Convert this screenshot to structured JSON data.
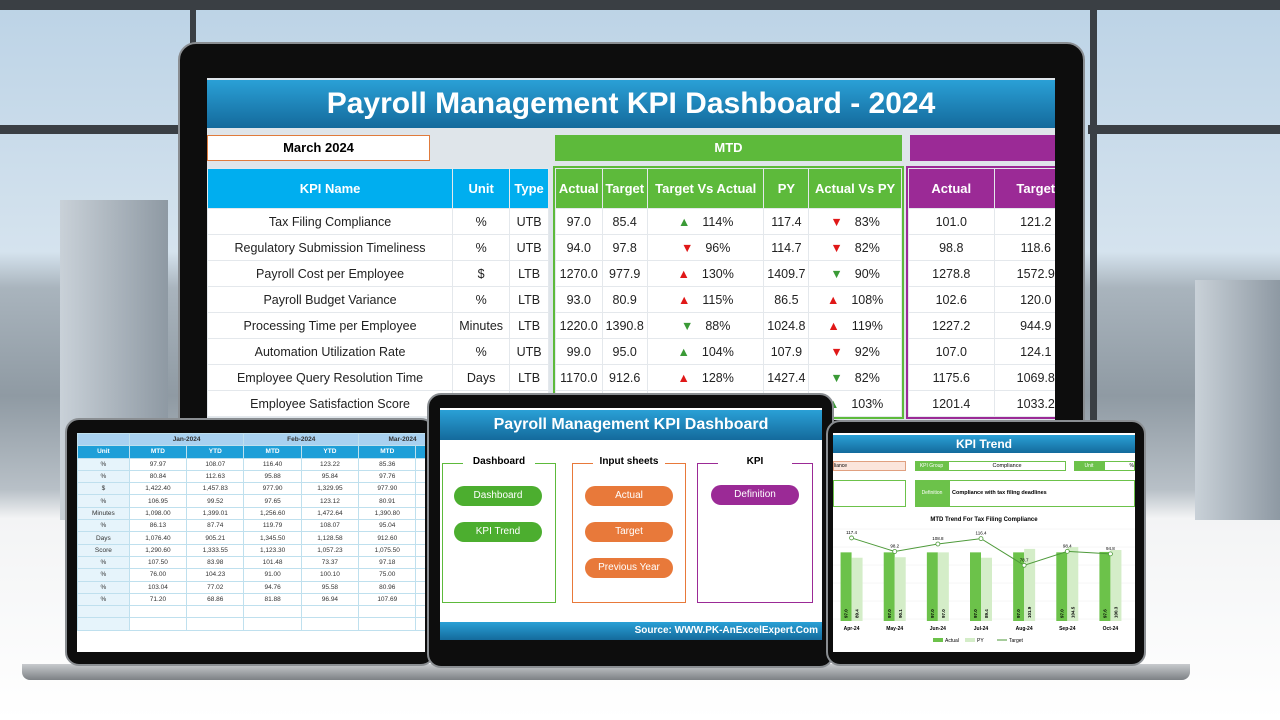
{
  "main": {
    "title": "Payroll Management KPI Dashboard - 2024",
    "month": "March 2024",
    "mtd_label": "MTD",
    "headers": {
      "kpi": "KPI Name",
      "unit": "Unit",
      "type": "Type",
      "actual": "Actual",
      "target": "Target",
      "tva": "Target Vs Actual",
      "py": "PY",
      "avp": "Actual Vs PY",
      "ytd_actual": "Actual",
      "ytd_target": "Target"
    },
    "rows": [
      {
        "kpi": "Tax Filing Compliance",
        "unit": "%",
        "type": "UTB",
        "actual": "97.0",
        "target": "85.4",
        "tva": "114%",
        "tva_dir": "up",
        "tva_color": "green",
        "py": "117.4",
        "avp": "83%",
        "avp_dir": "down",
        "avp_color": "red",
        "ytd_actual": "101.0",
        "ytd_target": "121.2"
      },
      {
        "kpi": "Regulatory Submission Timeliness",
        "unit": "%",
        "type": "UTB",
        "actual": "94.0",
        "target": "97.8",
        "tva": "96%",
        "tva_dir": "down",
        "tva_color": "red",
        "py": "114.7",
        "avp": "82%",
        "avp_dir": "down",
        "avp_color": "red",
        "ytd_actual": "98.8",
        "ytd_target": "118.6"
      },
      {
        "kpi": "Payroll Cost per Employee",
        "unit": "$",
        "type": "LTB",
        "actual": "1270.0",
        "target": "977.9",
        "tva": "130%",
        "tva_dir": "up",
        "tva_color": "red",
        "py": "1409.7",
        "avp": "90%",
        "avp_dir": "down",
        "avp_color": "green",
        "ytd_actual": "1278.8",
        "ytd_target": "1572.9"
      },
      {
        "kpi": "Payroll Budget Variance",
        "unit": "%",
        "type": "LTB",
        "actual": "93.0",
        "target": "80.9",
        "tva": "115%",
        "tva_dir": "up",
        "tva_color": "red",
        "py": "86.5",
        "avp": "108%",
        "avp_dir": "up",
        "avp_color": "red",
        "ytd_actual": "102.6",
        "ytd_target": "120.0"
      },
      {
        "kpi": "Processing Time per Employee",
        "unit": "Minutes",
        "type": "LTB",
        "actual": "1220.0",
        "target": "1390.8",
        "tva": "88%",
        "tva_dir": "down",
        "tva_color": "green",
        "py": "1024.8",
        "avp": "119%",
        "avp_dir": "up",
        "avp_color": "red",
        "ytd_actual": "1227.2",
        "ytd_target": "944.9"
      },
      {
        "kpi": "Automation Utilization Rate",
        "unit": "%",
        "type": "UTB",
        "actual": "99.0",
        "target": "95.0",
        "tva": "104%",
        "tva_dir": "up",
        "tva_color": "green",
        "py": "107.9",
        "avp": "92%",
        "avp_dir": "down",
        "avp_color": "red",
        "ytd_actual": "107.0",
        "ytd_target": "124.1"
      },
      {
        "kpi": "Employee Query Resolution Time",
        "unit": "Days",
        "type": "LTB",
        "actual": "1170.0",
        "target": "912.6",
        "tva": "128%",
        "tva_dir": "up",
        "tva_color": "red",
        "py": "1427.4",
        "avp": "82%",
        "avp_dir": "down",
        "avp_color": "green",
        "ytd_actual": "1175.6",
        "ytd_target": "1069.8"
      },
      {
        "kpi": "Employee Satisfaction Score",
        "unit": "",
        "type": "",
        "actual": "",
        "target": "",
        "tva": "",
        "tva_dir": "",
        "tva_color": "",
        "py": "",
        "avp": "103%",
        "avp_dir": "up",
        "avp_color": "green",
        "ytd_actual": "1201.4",
        "ytd_target": "1033.2"
      }
    ]
  },
  "sheet": {
    "months": [
      "Jan-2024",
      "Feb-2024",
      "Mar-2024"
    ],
    "unit_header": "Unit",
    "mtd": "MTD",
    "ytd": "YTD",
    "rows": [
      [
        "%",
        "97.97",
        "108.07",
        "116.40",
        "123.22",
        "85.36"
      ],
      [
        "%",
        "80.84",
        "112.63",
        "95.88",
        "95.84",
        "97.76"
      ],
      [
        "$",
        "1,422.40",
        "1,457.83",
        "977.90",
        "1,329.95",
        "977.90"
      ],
      [
        "%",
        "106.95",
        "99.52",
        "97.65",
        "123.12",
        "80.91"
      ],
      [
        "Minutes",
        "1,098.00",
        "1,399.01",
        "1,256.60",
        "1,472.64",
        "1,390.80"
      ],
      [
        "%",
        "86.13",
        "87.74",
        "119.79",
        "108.07",
        "95.04"
      ],
      [
        "Days",
        "1,076.40",
        "905.21",
        "1,345.50",
        "1,128.58",
        "912.60"
      ],
      [
        "Score",
        "1,290.60",
        "1,333.55",
        "1,123.30",
        "1,057.23",
        "1,075.50"
      ],
      [
        "%",
        "107.50",
        "83.98",
        "101.48",
        "73.37",
        "97.18"
      ],
      [
        "%",
        "76.00",
        "104.23",
        "91.00",
        "100.10",
        "75.00"
      ],
      [
        "%",
        "103.04",
        "77.02",
        "94.76",
        "95.58",
        "80.96"
      ],
      [
        "%",
        "71.20",
        "68.86",
        "81.88",
        "96.94",
        "107.69"
      ]
    ]
  },
  "menu": {
    "title": "Payroll Management KPI Dashboard",
    "dashboard_section": "Dashboard",
    "input_section": "Input sheets",
    "kpi_section": "KPI",
    "buttons": {
      "dashboard": "Dashboard",
      "kpi_trend": "KPI Trend",
      "actual": "Actual",
      "target": "Target",
      "previous_year": "Previous Year",
      "definition": "Definition"
    },
    "source": "Source: WWW.PK-AnExcelExpert.Com"
  },
  "trend": {
    "title": "KPI Trend",
    "kpi_fragment": "liance",
    "kpi_group_label": "KPI Group",
    "kpi_group": "Compliance",
    "unit_label": "Unit",
    "unit": "%",
    "definition_label": "Definition",
    "definition": "Compliance with tax filing deadlines",
    "chart": {
      "type": "bar+line",
      "title": "MTD Trend For Tax Filing Compliance",
      "categories": [
        "Apr-24",
        "May-24",
        "Jun-24",
        "Jul-24",
        "Aug-24",
        "Sep-24",
        "Oct-24"
      ],
      "series": [
        {
          "name": "Actual",
          "values": [
            97.0,
            97.0,
            97.0,
            97.0,
            97.0,
            97.0,
            97.6
          ]
        },
        {
          "name": "PY",
          "values": [
            89.4,
            90.1,
            97.0,
            89.4,
            101.9,
            104.5,
            100.3
          ]
        },
        {
          "name": "Target",
          "values": [
            117.4,
            98.2,
            108.8,
            116.4,
            78.7,
            98.4,
            94.8
          ]
        }
      ],
      "colors": {
        "actual": "#6cc24a",
        "py": "#d4edc8",
        "target": "#4e9a3a"
      }
    }
  },
  "colors": {
    "title_blue": "#1a7fb5",
    "header_blue": "#00aeef",
    "mtd_green": "#5dba3b",
    "ytd_purple": "#9b2a96",
    "up": "#3a9a36",
    "down": "#e01818"
  }
}
